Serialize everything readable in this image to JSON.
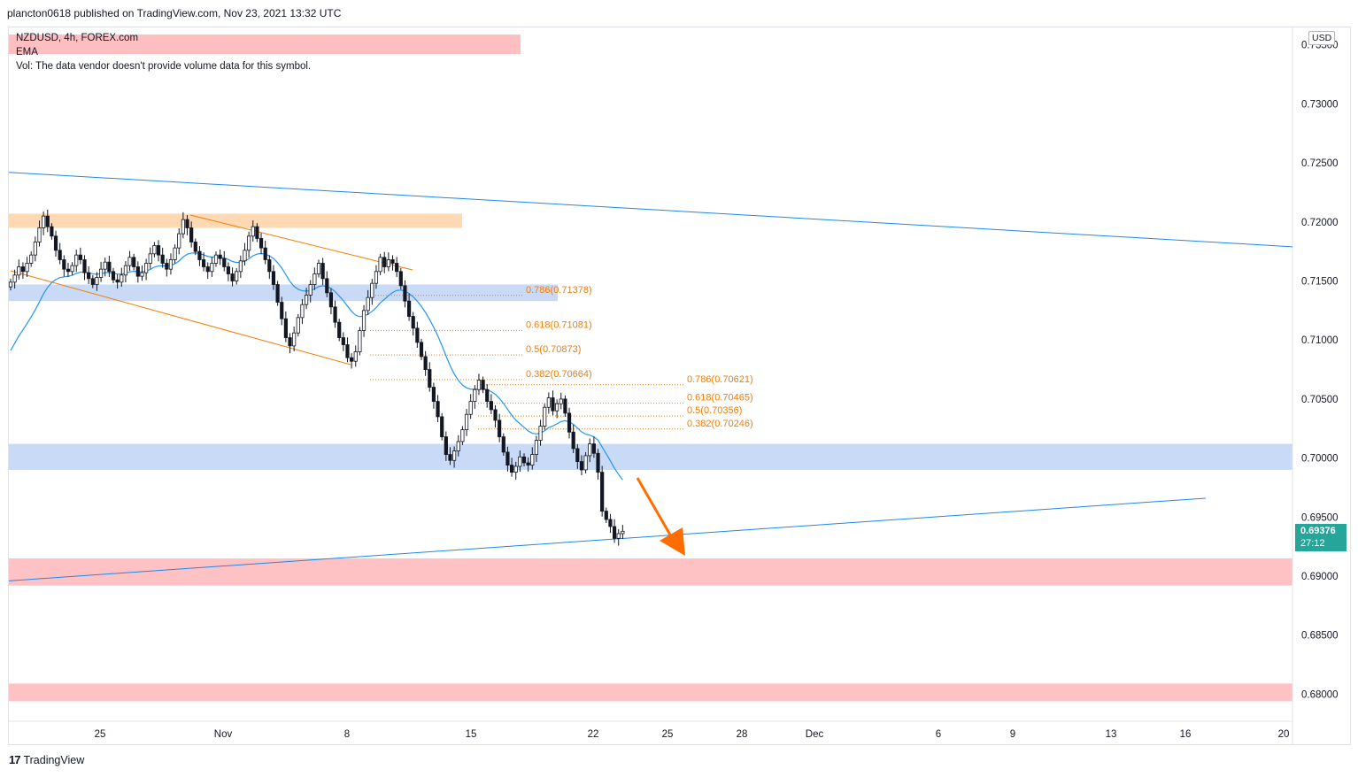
{
  "header": {
    "text": "plancton0618 published on TradingView.com, Nov 23, 2021 13:32 UTC"
  },
  "legend": {
    "symbol": "NZDUSD, 4h, FOREX.com",
    "indicator": "EMA",
    "volume_note": "Vol: The data vendor doesn't provide volume data for this symbol."
  },
  "currency": "USD",
  "last_price": {
    "value": "0.69376",
    "countdown": "27:12"
  },
  "footer": {
    "logo_text": "TradingView"
  },
  "colors": {
    "up": "#ffffff",
    "down": "#131722",
    "ema": "#2196f3",
    "trend": "#1e88e5",
    "fib": "#f57c00",
    "supply_zone": "#ffcc99",
    "blue_zone": "#bbd1f5",
    "red_zone": "#ffb3b5",
    "arrow": "#ff6d00",
    "price_badge": "#26a69a"
  },
  "chart_data": {
    "type": "candlestick",
    "symbol": "NZDUSD",
    "timeframe": "4h",
    "y_axis": {
      "ticks": [
        "0.73500",
        "0.73000",
        "0.72500",
        "0.72000",
        "0.71500",
        "0.71000",
        "0.70500",
        "0.70000",
        "0.69500",
        "0.69000",
        "0.68500",
        "0.68000"
      ]
    },
    "x_axis": {
      "ticks": [
        "25",
        "Nov",
        "8",
        "15",
        "22",
        "25",
        "28",
        "Dec",
        "6",
        "9",
        "13",
        "16",
        "20"
      ]
    },
    "closes": [
      0.7149,
      0.7155,
      0.7162,
      0.7158,
      0.7165,
      0.7172,
      0.7183,
      0.7195,
      0.7205,
      0.7196,
      0.7188,
      0.7176,
      0.7168,
      0.716,
      0.7158,
      0.7163,
      0.7172,
      0.7168,
      0.7157,
      0.7152,
      0.7147,
      0.7153,
      0.716,
      0.7166,
      0.7158,
      0.7151,
      0.7149,
      0.7155,
      0.7163,
      0.717,
      0.7162,
      0.7154,
      0.7157,
      0.7165,
      0.7173,
      0.718,
      0.7172,
      0.7165,
      0.716,
      0.7168,
      0.7178,
      0.719,
      0.7202,
      0.7195,
      0.7183,
      0.7175,
      0.7168,
      0.7162,
      0.7158,
      0.7165,
      0.7172,
      0.7169,
      0.7162,
      0.7156,
      0.715,
      0.7158,
      0.7167,
      0.7176,
      0.7188,
      0.7196,
      0.7186,
      0.7178,
      0.7168,
      0.7158,
      0.7147,
      0.7132,
      0.7118,
      0.7102,
      0.7095,
      0.7106,
      0.7119,
      0.713,
      0.7138,
      0.7147,
      0.7156,
      0.7165,
      0.7152,
      0.714,
      0.7128,
      0.7115,
      0.7102,
      0.7096,
      0.7085,
      0.7082,
      0.709,
      0.7108,
      0.7125,
      0.7136,
      0.7148,
      0.7158,
      0.717,
      0.7162,
      0.7168,
      0.7165,
      0.7158,
      0.7146,
      0.7133,
      0.712,
      0.711,
      0.7098,
      0.7086,
      0.7075,
      0.706,
      0.7048,
      0.7035,
      0.7018,
      0.7003,
      0.6998,
      0.7006,
      0.7014,
      0.7024,
      0.7037,
      0.7048,
      0.7058,
      0.7066,
      0.7058,
      0.7048,
      0.7041,
      0.7032,
      0.7018,
      0.7005,
      0.6994,
      0.6988,
      0.6993,
      0.7001,
      0.6996,
      0.6994,
      0.7003,
      0.7015,
      0.7027,
      0.7043,
      0.7051,
      0.704,
      0.7046,
      0.705,
      0.7038,
      0.7022,
      0.7008,
      0.6997,
      0.699,
      0.7002,
      0.7012,
      0.7004,
      0.6988,
      0.6955,
      0.6948,
      0.6942,
      0.6932,
      0.6936,
      0.6938
    ],
    "ema_label": "EMA",
    "fibonacci_sets": [
      {
        "levels": [
          {
            "ratio": "0.786",
            "price": "0.71378",
            "label": "0.786(0.71378)"
          },
          {
            "ratio": "0.618",
            "price": "0.71081",
            "label": "0.618(0.71081)"
          },
          {
            "ratio": "0.5",
            "price": "0.70873",
            "label": "0.5(0.70873)"
          },
          {
            "ratio": "0.382",
            "price": "0.70664",
            "label": "0.382(0.70664)"
          }
        ]
      },
      {
        "levels": [
          {
            "ratio": "0.786",
            "price": "0.70621",
            "label": "0.786(0.70621)"
          },
          {
            "ratio": "0.618",
            "price": "0.70465",
            "label": "0.618(0.70465)"
          },
          {
            "ratio": "0.5",
            "price": "0.70356",
            "label": "0.5(0.70356)"
          },
          {
            "ratio": "0.382",
            "price": "0.70246",
            "label": "0.382(0.70246)"
          }
        ]
      }
    ],
    "zones": [
      {
        "kind": "supply",
        "from": 0.7207,
        "to": 0.7195
      },
      {
        "kind": "blue",
        "from": 0.7147,
        "to": 0.7133
      },
      {
        "kind": "blue",
        "from": 0.7012,
        "to": 0.699
      },
      {
        "kind": "red",
        "from": 0.6915,
        "to": 0.6892
      },
      {
        "kind": "red",
        "from": 0.6809,
        "to": 0.6794
      }
    ],
    "trend_lines": [
      {
        "name": "upper long trend",
        "from": 0.7242,
        "to": 0.7179
      },
      {
        "name": "lower long trend",
        "from": 0.6896,
        "to": 0.6966
      }
    ],
    "last_price": 0.69376,
    "projection": "down arrow toward 0.6915"
  }
}
